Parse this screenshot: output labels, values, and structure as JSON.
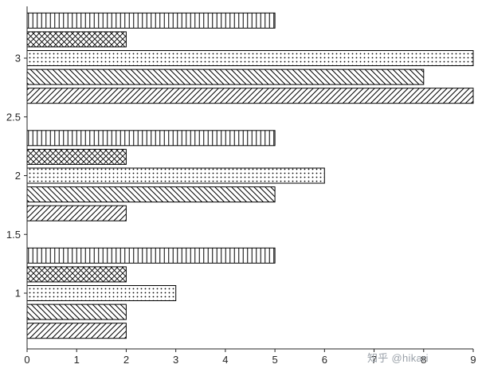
{
  "watermark": "知乎 @hikari",
  "chart_data": {
    "type": "bar",
    "orientation": "horizontal",
    "title": "",
    "xlabel": "",
    "ylabel": "",
    "grid": false,
    "legend": false,
    "categories": [
      1,
      2,
      3
    ],
    "series": [
      {
        "name": "vertical-stripes",
        "pattern": "vertical",
        "values": [
          5,
          5,
          5
        ]
      },
      {
        "name": "crosshatch",
        "pattern": "crosshatch",
        "values": [
          2,
          2,
          2
        ]
      },
      {
        "name": "dots",
        "pattern": "dots",
        "values": [
          3,
          6,
          9
        ]
      },
      {
        "name": "backslash-hatch",
        "pattern": "backslash",
        "values": [
          2,
          5,
          8
        ]
      },
      {
        "name": "forward-slash-hatch",
        "pattern": "slash",
        "values": [
          2,
          2,
          9
        ]
      }
    ],
    "series_order_note": "within each category group, series are drawn top to bottom in listed order",
    "xticks": [
      0,
      1,
      2,
      3,
      4,
      5,
      6,
      7,
      8,
      9
    ],
    "yticks": [
      1,
      1.5,
      2,
      2.5,
      3
    ],
    "xlim": [
      0,
      9
    ],
    "ylim": [
      0.5,
      3.45
    ],
    "bar_fill": "#ffffff",
    "bar_edge": "#000000",
    "axis_color": "#262626"
  }
}
